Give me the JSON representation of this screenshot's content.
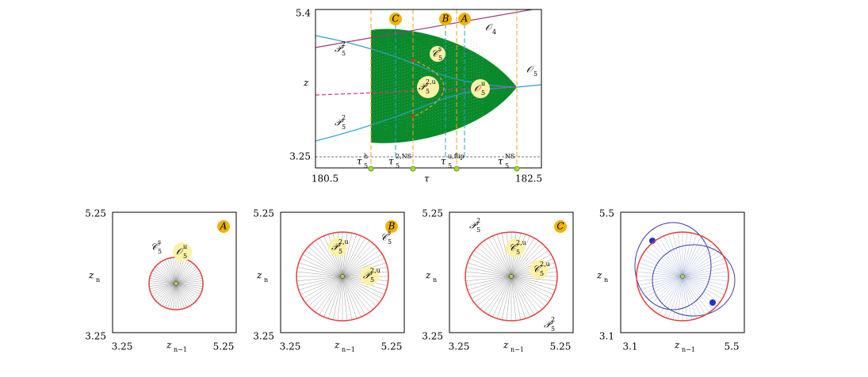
{
  "top_panel": {
    "y_top": "5.4",
    "y_bottom": "3.25",
    "x_left": "180.5",
    "x_right": "182.5",
    "x_axis_label": "τ",
    "y_axis_label": "z",
    "badges": [
      "C",
      "B",
      "A"
    ],
    "curve_labels": [
      {
        "main": "𝒪",
        "sub": "4"
      },
      {
        "main": "𝒫",
        "sub": "5",
        "sup": "2"
      },
      {
        "main": "𝒫",
        "sub": "5",
        "sup": "2"
      },
      {
        "main": "𝒞",
        "sub": "5",
        "sup": "s"
      },
      {
        "main": "𝒫",
        "sub": "5",
        "sup": "2,u"
      },
      {
        "main": "𝒪",
        "sub": "5",
        "sup": "u"
      },
      {
        "main": "𝒪",
        "sub": "5"
      }
    ],
    "tau_labels": [
      {
        "main": "τ",
        "sub": "5",
        "sup": "h"
      },
      {
        "main": "τ",
        "sub": "5",
        "sup": "2,NS"
      },
      {
        "main": "τ",
        "sub": "5",
        "sup": "u,flip"
      },
      {
        "main": "τ",
        "sub": "5",
        "sup": "NS"
      }
    ]
  },
  "bottom_panels": [
    {
      "y_top": "5.25",
      "y_bottom": "3.25",
      "x_left": "3.25",
      "x_right": "5.25",
      "y_axis_label": {
        "main": "z",
        "sub": "n"
      },
      "x_axis_label": {
        "main": "z",
        "sub": "n−1"
      },
      "badge": "A",
      "labels": [
        {
          "main": "𝒞",
          "sub": "5",
          "sup": "s"
        },
        {
          "main": "𝒪",
          "sub": "5",
          "sup": "u"
        }
      ]
    },
    {
      "y_top": "5.25",
      "y_bottom": "3.25",
      "x_left": "3.25",
      "x_right": "5.25",
      "y_axis_label": {
        "main": "z",
        "sub": "n"
      },
      "x_axis_label": {
        "main": "z",
        "sub": "n−1"
      },
      "badge": "B",
      "labels": [
        {
          "main": "𝒫",
          "sub": "5",
          "sup": "2,u"
        },
        {
          "main": "𝒞",
          "sub": "5",
          "sup": "s"
        },
        {
          "main": "𝒫",
          "sub": "5",
          "sup": "2,u"
        }
      ]
    },
    {
      "y_top": "5.25",
      "y_bottom": "3.25",
      "x_left": "3.25",
      "x_right": "5.25",
      "y_axis_label": {
        "main": "z",
        "sub": "n"
      },
      "x_axis_label": {
        "main": "z",
        "sub": "n−1"
      },
      "badge": "C",
      "labels": [
        {
          "main": "𝒫",
          "sub": "5",
          "sup": "2"
        },
        {
          "main": "𝒞",
          "sub": "5",
          "sup": "2,u"
        },
        {
          "main": "𝒞",
          "sub": "5",
          "sup": "2,u"
        },
        {
          "main": "𝒫",
          "sub": "5",
          "sup": "2"
        }
      ]
    },
    {
      "y_top": "5.5",
      "y_bottom": "3.1",
      "x_left": "3.1",
      "x_right": "5.5",
      "y_axis_label": {
        "main": "z",
        "sub": "n"
      },
      "x_axis_label": {
        "main": "z",
        "sub": "n−1"
      }
    }
  ]
}
